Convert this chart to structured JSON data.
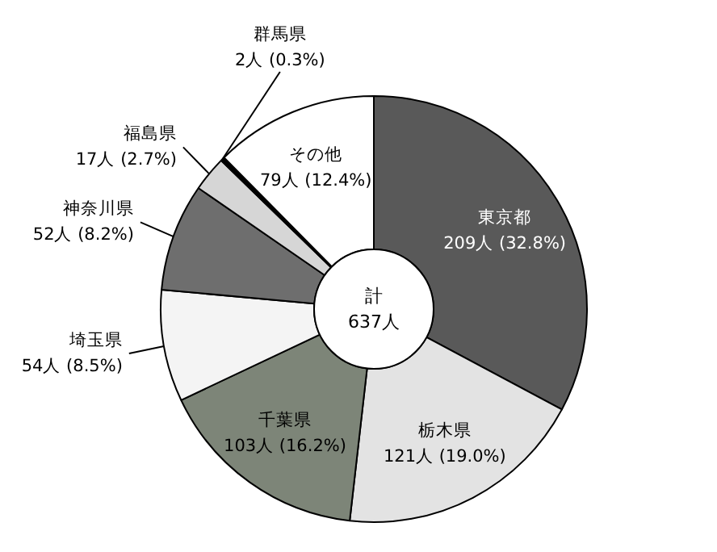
{
  "chart_data": {
    "type": "donut",
    "categories": [
      "東京都",
      "栃木県",
      "千葉県",
      "埼玉県",
      "神奈川県",
      "福島県",
      "群馬県",
      "その他"
    ],
    "values": [
      209,
      121,
      103,
      54,
      52,
      17,
      2,
      79
    ],
    "colors": [
      "#595959",
      "#e3e3e3",
      "#7d8578",
      "#f4f4f4",
      "#6e6e6e",
      "#d6d6d6",
      "#000000",
      "#ffffff"
    ],
    "value_labels": [
      "209人 (32.8%)",
      "121人 (19.0%)",
      "103人 (16.2%)",
      "54人 (8.5%)",
      "52人 (8.2%)",
      "17人 (2.7%)",
      "2人 (0.3%)",
      "79人 (12.4%)"
    ],
    "annotations": [
      "計",
      "637人"
    ]
  }
}
